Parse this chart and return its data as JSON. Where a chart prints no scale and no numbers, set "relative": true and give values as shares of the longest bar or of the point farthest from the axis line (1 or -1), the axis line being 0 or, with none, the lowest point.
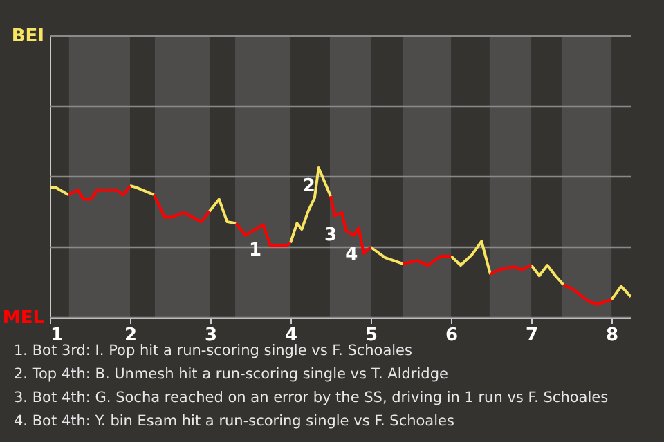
{
  "chart_data": {
    "type": "line",
    "relative": true,
    "x": [
      1.0,
      1.07,
      1.23,
      1.35,
      1.42,
      1.51,
      1.59,
      1.83,
      1.92,
      2.0,
      2.07,
      2.3,
      2.43,
      2.52,
      2.67,
      2.89,
      2.99,
      3.11,
      3.21,
      3.32,
      3.44,
      3.66,
      3.75,
      3.94,
      4.0,
      4.08,
      4.14,
      4.22,
      4.3,
      4.35,
      4.5,
      4.55,
      4.64,
      4.69,
      4.79,
      4.85,
      4.91,
      5.0,
      5.18,
      5.4,
      5.58,
      5.71,
      5.87,
      6.0,
      6.12,
      6.26,
      6.38,
      6.49,
      6.6,
      6.78,
      6.88,
      7.0,
      7.1,
      7.2,
      7.3,
      7.4,
      7.52,
      7.71,
      7.82,
      8.0,
      8.12,
      8.24
    ],
    "series": [
      {
        "color": "#f7e463",
        "values": [
          0.87,
          0.87,
          0.82,
          null,
          null,
          null,
          null,
          null,
          null,
          0.88,
          0.87,
          0.82,
          null,
          null,
          null,
          null,
          0.71,
          0.79,
          0.64,
          0.63,
          null,
          null,
          null,
          null,
          0.5,
          0.63,
          0.59,
          0.71,
          0.8,
          1,
          0.81,
          null,
          null,
          null,
          null,
          null,
          null,
          0.47,
          0.4,
          0.36,
          null,
          null,
          null,
          0.41,
          0.35,
          0.42,
          0.51,
          0.29,
          null,
          null,
          null,
          0.35,
          0.28,
          0.35,
          0.28,
          0.22,
          null,
          null,
          null,
          0.12,
          0.21,
          0.14
        ]
      },
      {
        "color": "#ff0000",
        "values": [
          null,
          null,
          0.82,
          0.85,
          0.79,
          0.79,
          0.85,
          0.85,
          0.82,
          0.88,
          null,
          0.82,
          0.67,
          0.67,
          0.7,
          0.64,
          0.71,
          null,
          null,
          0.63,
          0.55,
          0.62,
          0.48,
          0.48,
          0.5,
          null,
          null,
          null,
          null,
          null,
          0.81,
          0.68,
          0.7,
          0.58,
          0.55,
          0.6,
          0.43,
          0.47,
          null,
          0.36,
          0.38,
          0.35,
          0.41,
          0.41,
          null,
          null,
          null,
          0.29,
          0.32,
          0.34,
          0.32,
          0.35,
          null,
          null,
          null,
          0.22,
          0.19,
          0.11,
          0.09,
          0.12,
          null,
          null
        ]
      }
    ],
    "xlim": [
      1,
      8.24
    ],
    "xticks": [
      1,
      2,
      3,
      4,
      5,
      6,
      7,
      8
    ],
    "ref_lines": [
      {
        "axis": "y",
        "value": 0,
        "label": "MEL"
      },
      {
        "axis": "y",
        "value": 0.47,
        "label": null
      },
      {
        "axis": "y",
        "value": 0.94,
        "label": null
      },
      {
        "axis": "y",
        "value": 1.41,
        "label": null
      },
      {
        "axis": "y",
        "value": 1.88,
        "label": "BEI"
      }
    ],
    "bands": [
      {
        "axis": "x",
        "from": 1.24,
        "to": 2.0,
        "color": "#4d4c4a"
      },
      {
        "axis": "x",
        "from": 2.31,
        "to": 3.0,
        "color": "#4d4c4a"
      },
      {
        "axis": "x",
        "from": 3.31,
        "to": 4.0,
        "color": "#4d4c4a"
      },
      {
        "axis": "x",
        "from": 4.49,
        "to": 5.0,
        "color": "#4d4c4a"
      },
      {
        "axis": "x",
        "from": 5.4,
        "to": 6.0,
        "color": "#4d4c4a"
      },
      {
        "axis": "x",
        "from": 6.48,
        "to": 7.0,
        "color": "#4d4c4a"
      },
      {
        "axis": "x",
        "from": 7.38,
        "to": 8.0,
        "color": "#4d4c4a"
      }
    ],
    "annotations": [
      {
        "text": "1",
        "x": 3.75,
        "y": 0.48
      },
      {
        "text": "2",
        "x": 4.42,
        "y": 0.91
      },
      {
        "text": "3",
        "x": 4.69,
        "y": 0.58
      },
      {
        "text": "4",
        "x": 4.95,
        "y": 0.45
      },
      "1. Bot 3rd: I. Pop hit a run-scoring single vs F. Schoales",
      "2. Top 4th: B. Unmesh hit a run-scoring single vs T. Aldridge",
      "3. Bot 4th: G. Socha reached on an error by the SS, driving in 1 run vs F. Schoales",
      "4. Bot 4th: Y. bin Esam hit a run-scoring single vs F. Schoales"
    ]
  }
}
